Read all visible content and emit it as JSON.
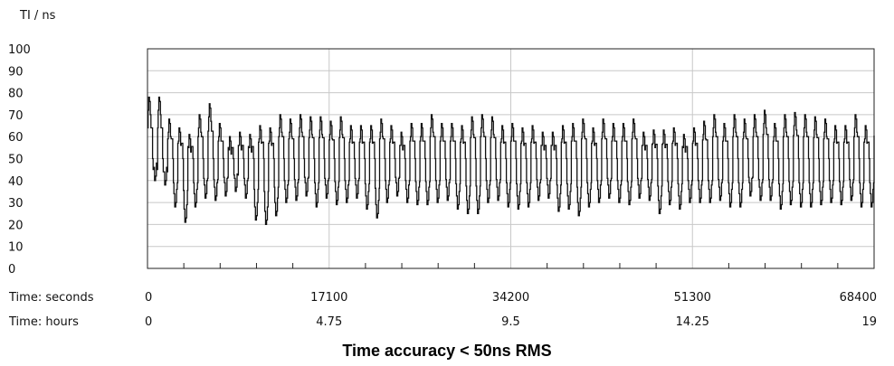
{
  "chart_data": {
    "type": "line",
    "ylabel": "TI / ns",
    "ylim": [
      0,
      100
    ],
    "y_ticks": [
      "100",
      "90",
      "80",
      "70",
      "60",
      "50",
      "40",
      "30",
      "20",
      "10",
      "0"
    ],
    "xlim": [
      0,
      68400
    ],
    "x_axis_rows": [
      {
        "label": "Time: seconds",
        "ticks": [
          "0",
          "17100",
          "34200",
          "51300",
          "68400"
        ]
      },
      {
        "label": "Time: hours",
        "ticks": [
          "0",
          "4.75",
          "9.5",
          "14.25",
          "19"
        ]
      }
    ],
    "grid": true,
    "caption": "Time accuracy < 50ns RMS",
    "series": [
      {
        "waveform": "square-ish oscillation",
        "center": 50,
        "period_seconds": 950,
        "peaks": [
          78,
          78,
          68,
          64,
          61,
          70,
          75,
          66,
          60,
          62,
          61,
          65,
          64,
          70,
          68,
          70,
          69,
          69,
          67,
          69,
          65,
          65,
          65,
          68,
          65,
          62,
          66,
          66,
          70,
          66,
          66,
          65,
          69,
          70,
          69,
          65,
          66,
          64,
          65,
          62,
          62,
          65,
          66,
          68,
          64,
          68,
          66,
          66,
          68,
          62,
          63,
          63,
          64,
          61,
          64,
          67,
          70,
          66,
          70,
          68,
          70,
          72,
          66,
          70,
          71,
          70,
          69,
          68,
          65,
          65,
          70,
          65,
          71,
          67,
          67,
          65,
          64,
          70,
          67,
          68,
          63,
          61,
          68,
          64,
          68,
          61,
          70,
          61,
          66,
          65,
          64,
          66,
          65,
          63,
          65,
          63,
          58,
          63,
          58,
          62,
          60,
          64,
          55,
          62,
          63
        ],
        "troughs": [
          40,
          38,
          28,
          21,
          28,
          32,
          31,
          33,
          35,
          32,
          22,
          20,
          24,
          30,
          31,
          33,
          28,
          32,
          29,
          30,
          32,
          27,
          23,
          30,
          33,
          30,
          29,
          29,
          30,
          31,
          27,
          25,
          25,
          30,
          31,
          28,
          27,
          28,
          31,
          32,
          26,
          27,
          24,
          28,
          30,
          32,
          30,
          29,
          32,
          31,
          25,
          29,
          27,
          30,
          30,
          30,
          31,
          28,
          28,
          33,
          31,
          31,
          27,
          29,
          28,
          28,
          29,
          30,
          29,
          31,
          28,
          28,
          27,
          30,
          27,
          28,
          29,
          31,
          30,
          30,
          32,
          25,
          28,
          30,
          29,
          31,
          26,
          27,
          27,
          28,
          31,
          28,
          30,
          31,
          25,
          24,
          29,
          31,
          30,
          26,
          22,
          28,
          26,
          22,
          30
        ]
      }
    ]
  }
}
